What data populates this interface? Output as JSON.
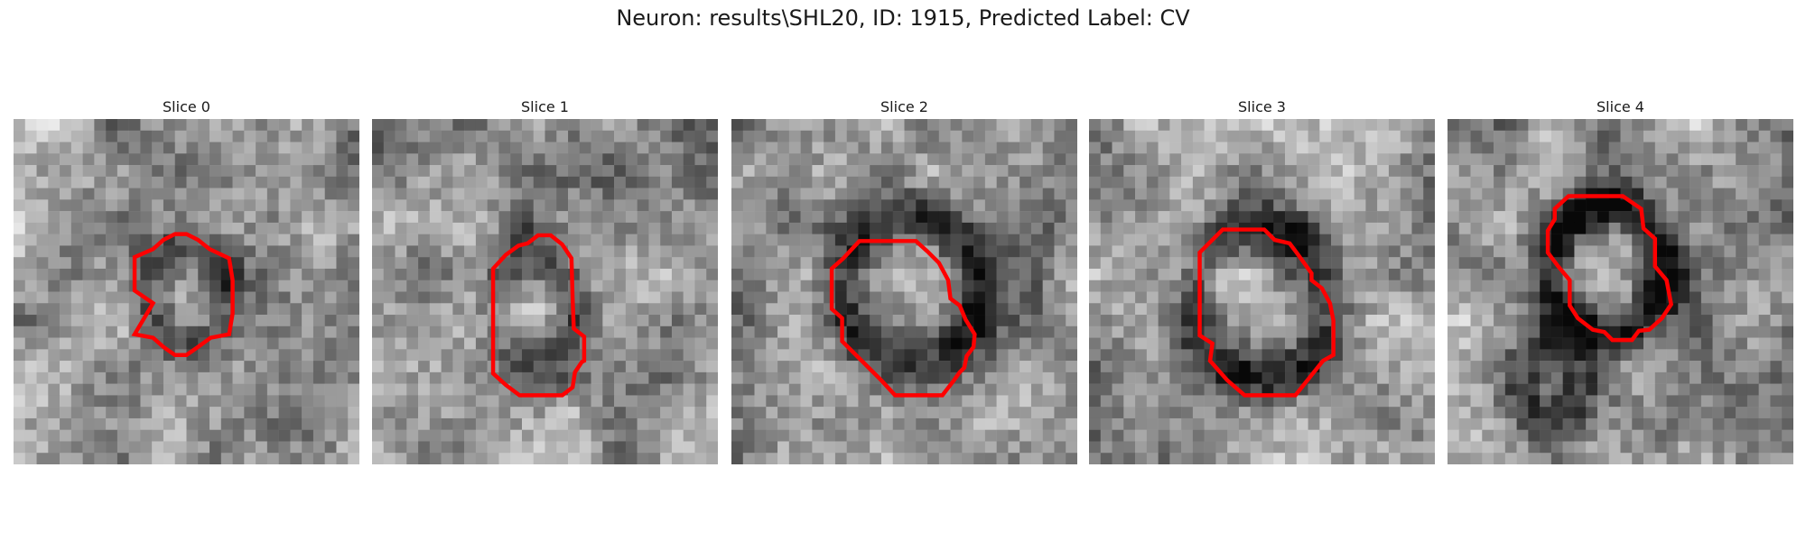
{
  "figure": {
    "title": "Neuron: results\\SHL20, ID: 1915, Predicted Label: CV"
  },
  "slices": [
    {
      "title": "Slice 0"
    },
    {
      "title": "Slice 1"
    },
    {
      "title": "Slice 2"
    },
    {
      "title": "Slice 3"
    },
    {
      "title": "Slice 4"
    }
  ],
  "colors": {
    "contour": "#ff0000",
    "colormap": "grayscale"
  }
}
